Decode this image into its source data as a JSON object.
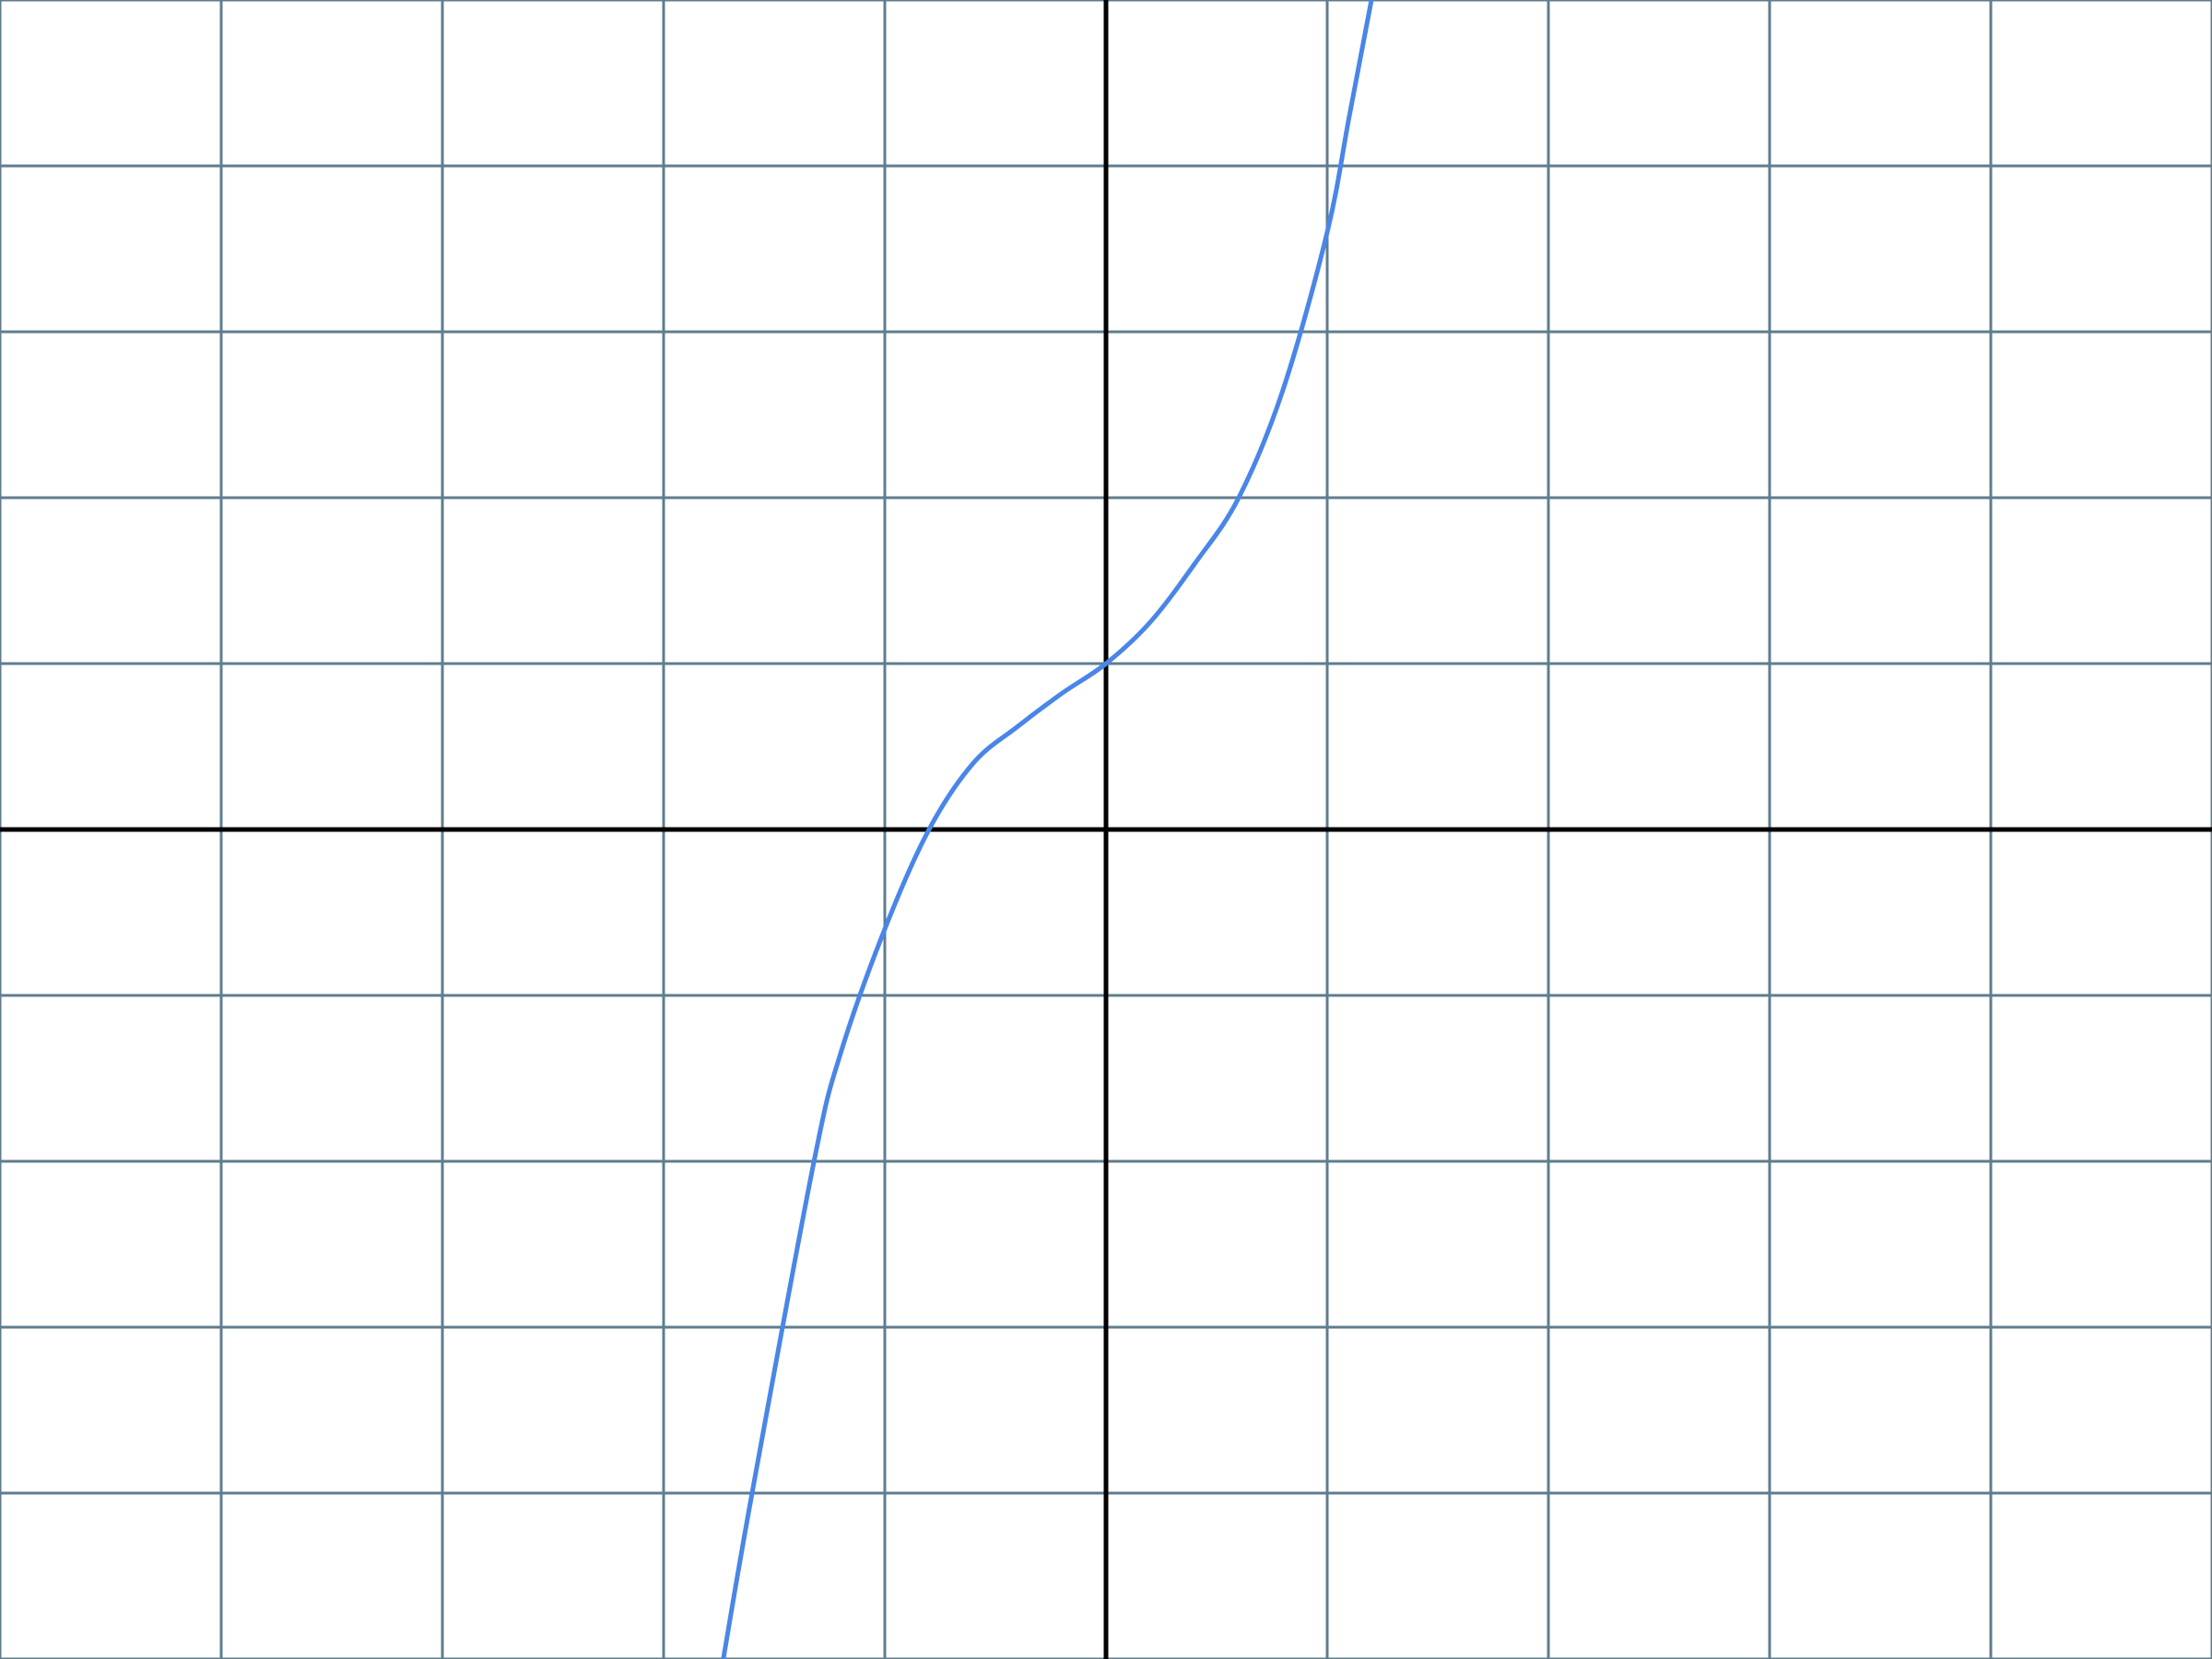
{
  "chart_data": {
    "type": "line",
    "title": "",
    "xlabel": "",
    "ylabel": "",
    "xlim": [
      -5,
      5
    ],
    "ylim": [
      -5,
      5
    ],
    "grid": true,
    "legend": "none",
    "colors": {
      "background": "#ffffff",
      "grid": "#5f7d8e",
      "axis": "#000000",
      "series": "#4a86e8"
    },
    "series": [
      {
        "points": [
          [
            -1.73,
            -5.0
          ],
          [
            -1.6,
            -4.0
          ],
          [
            -1.32,
            -2.0
          ],
          [
            -1.2,
            -1.35
          ],
          [
            -1.0,
            -0.6
          ],
          [
            -0.8,
            0.0
          ],
          [
            -0.6,
            0.4
          ],
          [
            -0.4,
            0.62
          ],
          [
            -0.2,
            0.82
          ],
          [
            0.0,
            1.0
          ],
          [
            0.2,
            1.25
          ],
          [
            0.4,
            1.6
          ],
          [
            0.6,
            2.0
          ],
          [
            0.8,
            2.65
          ],
          [
            1.0,
            3.6
          ],
          [
            1.1,
            4.3
          ],
          [
            1.2,
            5.0
          ]
        ]
      }
    ]
  }
}
